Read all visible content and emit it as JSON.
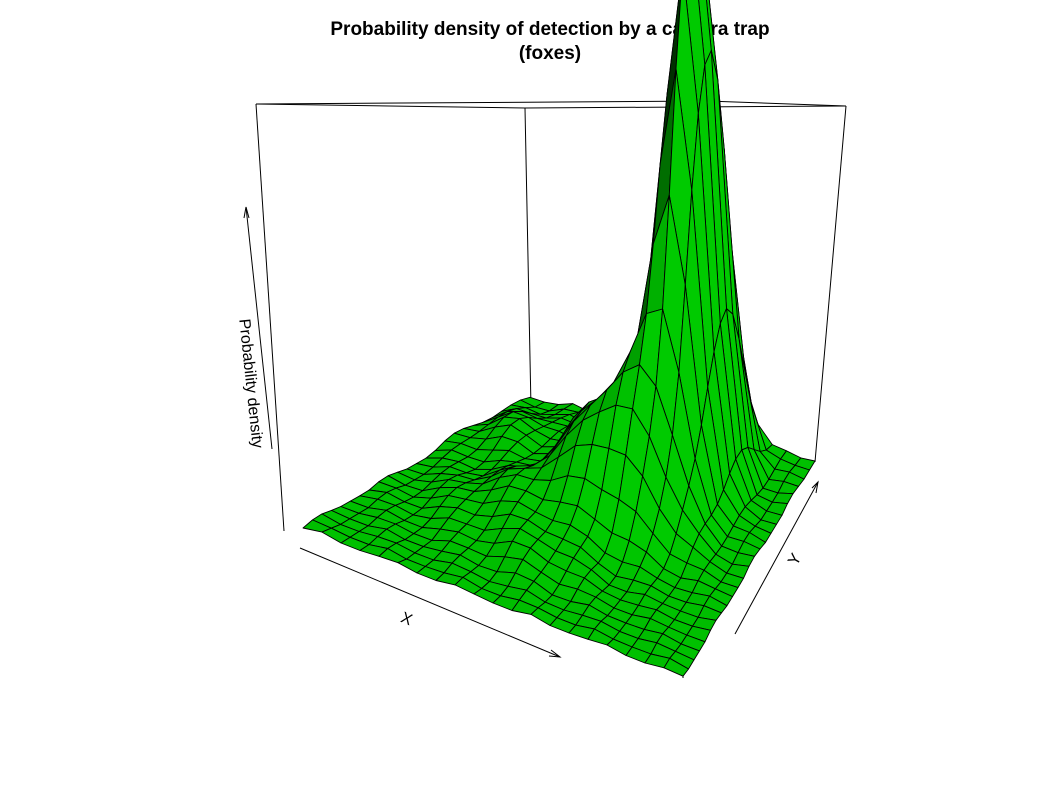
{
  "chart_data": {
    "type": "surface",
    "title": "Probability density of detection by a camera trap",
    "subtitle": "(foxes)",
    "xlabel": "X",
    "ylabel": "Y",
    "zlabel": "Probability density",
    "surface_color": "#00c000",
    "grid_cols": 21,
    "grid_rows": 25,
    "peak": {
      "i": 14,
      "j": 19,
      "relative_height": 1.0
    }
  }
}
